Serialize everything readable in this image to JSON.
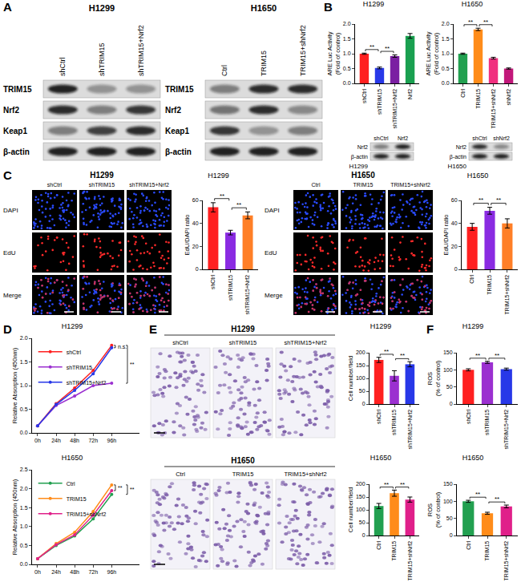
{
  "panel_labels": [
    "A",
    "B",
    "C",
    "D",
    "E",
    "F"
  ],
  "western_blots": [
    {
      "cell": "H1299",
      "lanes": [
        "shCtrl",
        "shTRIM15",
        "shTRIM15+Nrf2"
      ],
      "proteins": [
        "TRIM15",
        "Nrf2",
        "Keap1",
        "β-actin"
      ],
      "band_intensity": [
        [
          0.9,
          0.35,
          0.35
        ],
        [
          0.85,
          0.45,
          0.8
        ],
        [
          0.45,
          0.75,
          0.85
        ],
        [
          0.9,
          0.9,
          0.9
        ]
      ]
    },
    {
      "cell": "H1650",
      "lanes": [
        "Ctrl",
        "TRIM15",
        "TRIM15+shNrf2"
      ],
      "proteins": [
        "TRIM15",
        "Nrf2",
        "Keap1",
        "β-actin"
      ],
      "band_intensity": [
        [
          0.45,
          0.85,
          0.85
        ],
        [
          0.5,
          0.85,
          0.4
        ],
        [
          0.8,
          0.35,
          0.45
        ],
        [
          0.9,
          0.9,
          0.9
        ]
      ]
    }
  ],
  "control_blots": [
    {
      "cell": "H1299",
      "lanes": [
        "shCtrl",
        "Nrf2"
      ],
      "proteins": [
        "Nrf2",
        "β-actin"
      ],
      "band_intensity": [
        [
          0.45,
          0.9
        ],
        [
          0.9,
          0.9
        ]
      ]
    },
    {
      "cell": "H1650",
      "lanes": [
        "shCtrl",
        "shNrf2"
      ],
      "proteins": [
        "Nrf2",
        "β-actin"
      ],
      "band_intensity": [
        [
          0.85,
          0.4
        ],
        [
          0.9,
          0.9
        ]
      ]
    }
  ],
  "edu_images": [
    {
      "cell": "H1299",
      "conditions": [
        "shCtrl",
        "shTRIM15",
        "shTRIM15+Nrf2"
      ],
      "channels": [
        "DAPI",
        "EdU",
        "Merge"
      ]
    },
    {
      "cell": "H1650",
      "conditions": [
        "Ctrl",
        "TRIM15",
        "TRIM15+shNrf2"
      ],
      "channels": [
        "DAPI",
        "EdU",
        "Merge"
      ]
    }
  ],
  "transwell_images": [
    {
      "cell": "H1299",
      "conditions": [
        "shCtrl",
        "shTRIM15",
        "shTRIM15+Nrf2"
      ]
    },
    {
      "cell": "H1650",
      "conditions": [
        "Ctrl",
        "TRIM15",
        "TRIM15+shNrf2"
      ]
    }
  ],
  "chart_data": [
    {
      "panel": "B",
      "type": "bar",
      "title": "H1299",
      "ylabel": "ARE Luc Activity\n(Fold of control)",
      "grid": false,
      "categories": [
        "shCtrl",
        "shTRIM15",
        "shTRIM15+Nrf2",
        "Nrf2"
      ],
      "values": [
        1.0,
        0.52,
        0.92,
        1.6
      ],
      "errors": [
        0.02,
        0.03,
        0.04,
        0.08
      ],
      "colors": [
        "#ff2020",
        "#2838e8",
        "#7a1fa2",
        "#1aa050"
      ],
      "ylim": [
        0,
        2
      ],
      "yticks": [
        {
          "value": 0,
          "label": "0.0"
        },
        {
          "value": 0.5,
          "label": "0.5"
        },
        {
          "value": 1,
          "label": "1.0"
        },
        {
          "value": 1.5,
          "label": "1.5"
        },
        {
          "value": 2,
          "label": "2.0"
        }
      ],
      "annotations": [
        {
          "text": "**",
          "between": [
            0,
            1
          ]
        },
        {
          "text": "**",
          "between": [
            1,
            2
          ]
        }
      ]
    },
    {
      "panel": "B",
      "type": "bar",
      "title": "H1650",
      "ylabel": "ARE Luc Activity\n(Fold of control)",
      "grid": false,
      "categories": [
        "Ctrl",
        "TRIM15",
        "TRIM15+shNrf2",
        "shNrf2"
      ],
      "values": [
        1.0,
        1.82,
        0.85,
        0.5
      ],
      "errors": [
        0.02,
        0.04,
        0.03,
        0.02
      ],
      "colors": [
        "#22a050",
        "#ff8c1a",
        "#f0307f",
        "#c2187a"
      ],
      "ylim": [
        0,
        2
      ],
      "yticks": [
        {
          "value": 0,
          "label": "0.0"
        },
        {
          "value": 0.5,
          "label": "0.5"
        },
        {
          "value": 1,
          "label": "1.0"
        },
        {
          "value": 1.5,
          "label": "1.5"
        },
        {
          "value": 2,
          "label": "2.0"
        }
      ],
      "annotations": [
        {
          "text": "**",
          "between": [
            0,
            1
          ]
        },
        {
          "text": "**",
          "between": [
            1,
            2
          ]
        }
      ]
    },
    {
      "panel": "C",
      "type": "bar",
      "title": "H1299",
      "ylabel": "EdU/DAPI ratio",
      "grid": false,
      "categories": [
        "shCtrl",
        "shTRIM15",
        "shTRIM15+Nrf2"
      ],
      "values": [
        54,
        32,
        47
      ],
      "errors": [
        4,
        2,
        3
      ],
      "colors": [
        "#ff2020",
        "#8a2be2",
        "#ff7f27"
      ],
      "ylim": [
        0,
        60
      ],
      "yticks": [
        0,
        20,
        40,
        60
      ],
      "annotations": [
        {
          "text": "**",
          "between": [
            0,
            1
          ]
        },
        {
          "text": "**",
          "between": [
            1,
            2
          ]
        }
      ]
    },
    {
      "panel": "C",
      "type": "bar",
      "title": "H1650",
      "ylabel": "EdU/DAPI ratio",
      "grid": false,
      "categories": [
        "Ctrl",
        "TRIM15",
        "TRIM15+shNrf2"
      ],
      "values": [
        37,
        51,
        40
      ],
      "errors": [
        3,
        3,
        4
      ],
      "colors": [
        "#ff2020",
        "#8a2be2",
        "#ff7f27"
      ],
      "ylim": [
        0,
        60
      ],
      "yticks": [
        0,
        20,
        40,
        60
      ],
      "annotations": [
        {
          "text": "**",
          "between": [
            0,
            1
          ]
        },
        {
          "text": "**",
          "between": [
            1,
            2
          ]
        }
      ]
    },
    {
      "panel": "D",
      "type": "line",
      "title": "H1299",
      "ylabel": "Relative Absorption (450nm)",
      "grid": false,
      "legend": "upper left",
      "marker": "circle",
      "line_style": "solid",
      "categories": [
        "0h",
        "24h",
        "48h",
        "72h",
        "96h"
      ],
      "series": [
        {
          "name": "shCtrl",
          "color": "#ff2020",
          "values": [
            0.15,
            0.62,
            0.95,
            1.32,
            1.85
          ]
        },
        {
          "name": "shTRIM15",
          "color": "#9b30d0",
          "values": [
            0.15,
            0.58,
            0.78,
            1.0,
            1.05
          ]
        },
        {
          "name": "shTRIM15+Nrf2",
          "color": "#2838e8",
          "values": [
            0.15,
            0.6,
            0.9,
            1.25,
            1.8
          ]
        }
      ],
      "ylim": [
        0,
        2
      ],
      "yticks": [
        {
          "value": 0,
          "label": "0.0"
        },
        {
          "value": 0.5,
          "label": "0.5"
        },
        {
          "value": 1,
          "label": "1.0"
        },
        {
          "value": 1.5,
          "label": "1.5"
        },
        {
          "value": 2,
          "label": "2.0"
        }
      ],
      "annotations": [
        {
          "text": "n.s.",
          "between": [
            "shCtrl",
            "shTRIM15+Nrf2"
          ]
        },
        {
          "text": "**",
          "between": [
            "shCtrl",
            "shTRIM15"
          ]
        }
      ]
    },
    {
      "panel": "D",
      "type": "line",
      "title": "H1650",
      "ylabel": "Relative Absorption (450nm)",
      "grid": false,
      "legend": "upper left",
      "marker": "circle",
      "line_style": "solid",
      "categories": [
        "0h",
        "24h",
        "48h",
        "72h",
        "96h"
      ],
      "series": [
        {
          "name": "Ctrl",
          "color": "#22a050",
          "values": [
            0.15,
            0.5,
            0.75,
            1.2,
            1.85
          ]
        },
        {
          "name": "TRIM15",
          "color": "#ff8c1a",
          "values": [
            0.15,
            0.55,
            0.85,
            1.4,
            2.1
          ]
        },
        {
          "name": "TRIM15+shNrf2",
          "color": "#e0208a",
          "values": [
            0.15,
            0.52,
            0.78,
            1.3,
            1.95
          ]
        }
      ],
      "ylim": [
        0,
        2.5
      ],
      "yticks": [
        {
          "value": 0,
          "label": "0.0"
        },
        {
          "value": 0.5,
          "label": "0.5"
        },
        {
          "value": 1,
          "label": "1.0"
        },
        {
          "value": 1.5,
          "label": "1.5"
        },
        {
          "value": 2,
          "label": "2.0"
        },
        {
          "value": 2.5,
          "label": "2.5"
        }
      ],
      "annotations": [
        {
          "text": "**",
          "between": [
            "TRIM15",
            "TRIM15+shNrf2"
          ]
        },
        {
          "text": "**",
          "between": [
            "TRIM15",
            "Ctrl"
          ]
        }
      ]
    },
    {
      "panel": "E",
      "type": "bar",
      "title": "H1299",
      "ylabel": "Cell number/field",
      "grid": false,
      "categories": [
        "shCtrl",
        "shTRIM15",
        "shTRIM15+Nrf2"
      ],
      "values": [
        172,
        110,
        155
      ],
      "errors": [
        10,
        20,
        10
      ],
      "colors": [
        "#ff2020",
        "#9b30d0",
        "#2838e8"
      ],
      "ylim": [
        0,
        200
      ],
      "yticks": [
        0,
        50,
        100,
        150,
        200
      ],
      "annotations": [
        {
          "text": "**",
          "between": [
            0,
            1
          ]
        },
        {
          "text": "**",
          "between": [
            1,
            2
          ]
        }
      ]
    },
    {
      "panel": "E",
      "type": "bar",
      "title": "H1650",
      "ylabel": "Cell number/field",
      "grid": false,
      "categories": [
        "Ctrl",
        "TRIM15",
        "TRIM15+shNrf2"
      ],
      "values": [
        115,
        165,
        140
      ],
      "errors": [
        10,
        12,
        10
      ],
      "colors": [
        "#22a050",
        "#ff8c1a",
        "#e0208a"
      ],
      "ylim": [
        0,
        200
      ],
      "yticks": [
        0,
        50,
        100,
        150,
        200
      ],
      "annotations": [
        {
          "text": "**",
          "between": [
            0,
            1
          ]
        },
        {
          "text": "**",
          "between": [
            1,
            2
          ]
        }
      ]
    },
    {
      "panel": "F",
      "type": "bar",
      "title": "H1299",
      "ylabel": "ROS\n(% of control)",
      "grid": false,
      "categories": [
        "shCtrl",
        "shTRIM15",
        "shTRIM15+Nrf2"
      ],
      "values": [
        100,
        122,
        102
      ],
      "errors": [
        3,
        3,
        3
      ],
      "colors": [
        "#ff2020",
        "#9b30d0",
        "#2838e8"
      ],
      "ylim": [
        0,
        150
      ],
      "yticks": [
        0,
        50,
        100,
        150
      ],
      "annotations": [
        {
          "text": "**",
          "between": [
            0,
            1
          ]
        },
        {
          "text": "**",
          "between": [
            1,
            2
          ]
        }
      ]
    },
    {
      "panel": "F",
      "type": "bar",
      "title": "H1650",
      "ylabel": "ROS\n(% of control)",
      "grid": false,
      "categories": [
        "Ctrl",
        "TRIM15",
        "TRIM15+shNrf2"
      ],
      "values": [
        100,
        65,
        85
      ],
      "errors": [
        3,
        3,
        4
      ],
      "colors": [
        "#22a050",
        "#ff8c1a",
        "#e0208a"
      ],
      "ylim": [
        0,
        150
      ],
      "yticks": [
        0,
        50,
        100,
        150
      ],
      "annotations": [
        {
          "text": "**",
          "between": [
            0,
            1
          ]
        },
        {
          "text": "**",
          "between": [
            1,
            2
          ]
        }
      ]
    }
  ]
}
